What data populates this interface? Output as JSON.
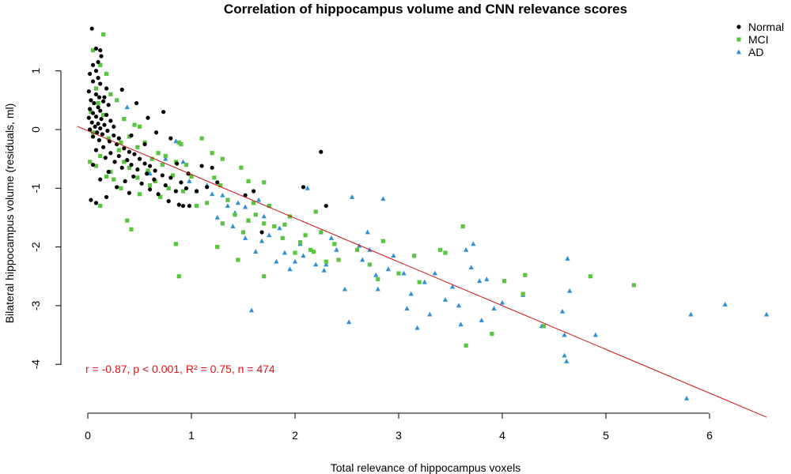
{
  "chart_data": {
    "type": "scatter",
    "title": "Correlation of hippocampus volume and CNN relevance scores",
    "xlabel": "Total relevance of hippocampus voxels",
    "ylabel": "Bilateral hippocampus volume (residuals, ml)",
    "xlim": [
      -0.05,
      6.55
    ],
    "ylim": [
      -4.85,
      1.75
    ],
    "xticks": [
      0,
      1,
      2,
      3,
      4,
      5,
      6
    ],
    "yticks": [
      1,
      0,
      -1,
      -2,
      -3,
      -4
    ],
    "grid": false,
    "legend_position": "top-right",
    "colors": {
      "Normal": "#000000",
      "MCI": "#59c43f",
      "AD": "#2f8fd3",
      "fit": "#d01010",
      "annotation": "#e3141a"
    },
    "annotation": "r = -0.87, p < 0.001, R² = 0.75, n = 474",
    "fit_line": {
      "intercept": -0.02,
      "slope": -0.745
    },
    "series": [
      {
        "name": "Normal",
        "marker": "circle",
        "points": [
          [
            0.04,
            1.72
          ],
          [
            0.08,
            1.38
          ],
          [
            0.12,
            1.35
          ],
          [
            0.13,
            1.25
          ],
          [
            0.1,
            1.15
          ],
          [
            0.05,
            1.1
          ],
          [
            0.08,
            1.0
          ],
          [
            0.02,
            0.95
          ],
          [
            0.1,
            0.88
          ],
          [
            0.05,
            0.82
          ],
          [
            0.12,
            0.78
          ],
          [
            0.18,
            0.7
          ],
          [
            0.01,
            0.65
          ],
          [
            0.08,
            0.6
          ],
          [
            0.11,
            0.55
          ],
          [
            0.03,
            0.5
          ],
          [
            0.15,
            0.48
          ],
          [
            0.06,
            0.45
          ],
          [
            0.2,
            0.42
          ],
          [
            0.1,
            0.38
          ],
          [
            0.02,
            0.35
          ],
          [
            0.12,
            0.32
          ],
          [
            0.05,
            0.28
          ],
          [
            0.18,
            0.25
          ],
          [
            0.08,
            0.22
          ],
          [
            0.01,
            0.2
          ],
          [
            0.13,
            0.18
          ],
          [
            0.22,
            0.15
          ],
          [
            0.04,
            0.12
          ],
          [
            0.1,
            0.1
          ],
          [
            0.16,
            0.08
          ],
          [
            0.07,
            0.05
          ],
          [
            0.12,
            0.02
          ],
          [
            0.02,
            0.0
          ],
          [
            0.19,
            -0.02
          ],
          [
            0.09,
            -0.05
          ],
          [
            0.14,
            -0.08
          ],
          [
            0.25,
            -0.1
          ],
          [
            0.05,
            -0.12
          ],
          [
            0.3,
            -0.15
          ],
          [
            0.11,
            -0.18
          ],
          [
            0.21,
            -0.2
          ],
          [
            0.28,
            -0.25
          ],
          [
            0.15,
            -0.3
          ],
          [
            0.35,
            -0.32
          ],
          [
            0.08,
            -0.35
          ],
          [
            0.4,
            -0.38
          ],
          [
            0.22,
            -0.4
          ],
          [
            0.45,
            -0.42
          ],
          [
            0.3,
            -0.45
          ],
          [
            0.17,
            -0.48
          ],
          [
            0.5,
            -0.5
          ],
          [
            0.38,
            -0.52
          ],
          [
            0.26,
            -0.55
          ],
          [
            0.55,
            -0.58
          ],
          [
            0.42,
            -0.6
          ],
          [
            0.6,
            -0.62
          ],
          [
            0.33,
            -0.65
          ],
          [
            0.48,
            -0.68
          ],
          [
            0.65,
            -0.7
          ],
          [
            0.2,
            -0.72
          ],
          [
            0.57,
            -0.75
          ],
          [
            0.72,
            -0.78
          ],
          [
            0.44,
            -0.8
          ],
          [
            0.8,
            -0.82
          ],
          [
            0.64,
            -0.85
          ],
          [
            0.36,
            -0.88
          ],
          [
            0.9,
            -0.9
          ],
          [
            0.52,
            -0.92
          ],
          [
            0.75,
            -0.95
          ],
          [
            0.28,
            -0.98
          ],
          [
            0.95,
            -1.0
          ],
          [
            0.6,
            -1.02
          ],
          [
            0.85,
            -1.05
          ],
          [
            0.4,
            -1.08
          ],
          [
            0.68,
            -1.1
          ],
          [
            0.18,
            -1.15
          ],
          [
            0.78,
            -1.22
          ],
          [
            0.08,
            -1.25
          ],
          [
            0.92,
            -1.3
          ],
          [
            0.33,
            0.68
          ],
          [
            0.47,
            0.45
          ],
          [
            0.58,
            0.2
          ],
          [
            0.66,
            -0.05
          ],
          [
            0.8,
            -0.15
          ],
          [
            0.73,
            0.3
          ],
          [
            0.55,
            -0.25
          ],
          [
            0.42,
            -0.1
          ],
          [
            0.25,
            0.05
          ],
          [
            0.16,
            0.55
          ],
          [
            0.05,
            -0.6
          ],
          [
            0.12,
            -0.85
          ],
          [
            0.03,
            -1.2
          ],
          [
            1.1,
            -0.62
          ],
          [
            1.2,
            -0.65
          ],
          [
            1.15,
            -0.98
          ],
          [
            1.25,
            -0.9
          ],
          [
            1.52,
            -1.12
          ],
          [
            1.6,
            -1.05
          ],
          [
            1.68,
            -1.75
          ],
          [
            2.08,
            -0.98
          ],
          [
            2.25,
            -0.38
          ],
          [
            2.3,
            -1.3
          ],
          [
            0.98,
            -1.3
          ],
          [
            0.88,
            -1.28
          ],
          [
            1.05,
            -1.05
          ],
          [
            0.97,
            -0.75
          ],
          [
            0.86,
            -0.58
          ]
        ]
      },
      {
        "name": "MCI",
        "marker": "square",
        "points": [
          [
            0.15,
            1.62
          ],
          [
            0.05,
            1.35
          ],
          [
            0.12,
            1.1
          ],
          [
            0.18,
            0.95
          ],
          [
            0.08,
            0.7
          ],
          [
            0.22,
            0.6
          ],
          [
            0.1,
            0.45
          ],
          [
            0.28,
            0.5
          ],
          [
            0.03,
            0.3
          ],
          [
            0.15,
            0.25
          ],
          [
            0.35,
            0.18
          ],
          [
            0.05,
            -0.05
          ],
          [
            0.2,
            -0.15
          ],
          [
            0.4,
            -0.12
          ],
          [
            0.12,
            -0.45
          ],
          [
            0.3,
            -0.35
          ],
          [
            0.48,
            -0.3
          ],
          [
            0.55,
            -0.22
          ],
          [
            0.08,
            -0.62
          ],
          [
            0.22,
            -0.72
          ],
          [
            0.35,
            -0.55
          ],
          [
            0.62,
            -0.5
          ],
          [
            0.75,
            -0.45
          ],
          [
            0.48,
            -0.82
          ],
          [
            0.65,
            -0.88
          ],
          [
            0.85,
            -0.55
          ],
          [
            0.95,
            -0.6
          ],
          [
            0.5,
            -1.1
          ],
          [
            0.7,
            -1.15
          ],
          [
            0.02,
            -0.55
          ],
          [
            0.12,
            -1.3
          ],
          [
            0.38,
            -1.55
          ],
          [
            0.42,
            -1.7
          ],
          [
            0.9,
            -0.25
          ],
          [
            1.1,
            -0.15
          ],
          [
            1.2,
            -0.4
          ],
          [
            1.3,
            -0.5
          ],
          [
            1.22,
            -0.82
          ],
          [
            1.28,
            -0.95
          ],
          [
            1.35,
            -1.2
          ],
          [
            1.48,
            -0.65
          ],
          [
            1.55,
            -0.88
          ],
          [
            1.6,
            -1.25
          ],
          [
            1.42,
            -1.45
          ],
          [
            1.3,
            -1.6
          ],
          [
            1.5,
            -1.75
          ],
          [
            1.62,
            -1.45
          ],
          [
            1.7,
            -1.6
          ],
          [
            1.7,
            -0.9
          ],
          [
            1.75,
            -1.3
          ],
          [
            1.8,
            -1.65
          ],
          [
            1.88,
            -1.85
          ],
          [
            1.95,
            -1.48
          ],
          [
            2.0,
            -2.1
          ],
          [
            2.1,
            -1.8
          ],
          [
            2.15,
            -2.05
          ],
          [
            2.2,
            -1.4
          ],
          [
            2.25,
            -1.75
          ],
          [
            2.3,
            -2.25
          ],
          [
            2.18,
            -2.08
          ],
          [
            2.38,
            -1.95
          ],
          [
            2.42,
            -2.22
          ],
          [
            2.6,
            -2.05
          ],
          [
            2.72,
            -2.3
          ],
          [
            2.8,
            -2.55
          ],
          [
            2.85,
            -1.9
          ],
          [
            3.0,
            -2.45
          ],
          [
            3.15,
            -2.15
          ],
          [
            3.2,
            -2.6
          ],
          [
            3.4,
            -2.05
          ],
          [
            3.45,
            -2.1
          ],
          [
            3.62,
            -1.65
          ],
          [
            3.65,
            -3.68
          ],
          [
            3.9,
            -3.48
          ],
          [
            4.02,
            -2.58
          ],
          [
            4.22,
            -2.48
          ],
          [
            4.2,
            -2.8
          ],
          [
            4.4,
            -3.35
          ],
          [
            4.85,
            -2.5
          ],
          [
            5.27,
            -2.65
          ],
          [
            0.88,
            -2.5
          ],
          [
            0.85,
            -1.95
          ],
          [
            1.25,
            -2.0
          ],
          [
            1.45,
            -2.22
          ],
          [
            1.7,
            -2.5
          ],
          [
            1.05,
            -1.3
          ],
          [
            1.15,
            -1.25
          ],
          [
            1.55,
            -1.55
          ],
          [
            1.9,
            -1.62
          ],
          [
            2.05,
            -1.92
          ],
          [
            1.0,
            -0.8
          ],
          [
            0.6,
            -0.95
          ],
          [
            0.78,
            -1.0
          ],
          [
            0.32,
            -1.0
          ],
          [
            0.25,
            -0.85
          ],
          [
            0.18,
            -0.8
          ],
          [
            0.4,
            -0.65
          ],
          [
            0.58,
            -0.7
          ],
          [
            0.68,
            -0.4
          ],
          [
            0.72,
            -0.6
          ],
          [
            0.82,
            -0.78
          ],
          [
            0.92,
            -1.05
          ],
          [
            0.88,
            -0.22
          ],
          [
            0.45,
            0.08
          ],
          [
            0.5,
            0.05
          ],
          [
            0.32,
            -0.22
          ]
        ]
      },
      {
        "name": "AD",
        "marker": "triangle",
        "points": [
          [
            0.38,
            0.38
          ],
          [
            0.85,
            -0.2
          ],
          [
            0.92,
            -0.55
          ],
          [
            0.98,
            -0.88
          ],
          [
            1.2,
            -1.1
          ],
          [
            1.35,
            -1.3
          ],
          [
            1.42,
            -1.42
          ],
          [
            1.52,
            -1.32
          ],
          [
            1.55,
            -1.55
          ],
          [
            1.58,
            -3.08
          ],
          [
            1.62,
            -2.08
          ],
          [
            1.7,
            -1.48
          ],
          [
            1.75,
            -1.8
          ],
          [
            1.82,
            -2.25
          ],
          [
            1.85,
            -1.68
          ],
          [
            1.9,
            -2.1
          ],
          [
            1.95,
            -2.38
          ],
          [
            2.05,
            -1.95
          ],
          [
            2.08,
            -2.15
          ],
          [
            2.12,
            -1.0
          ],
          [
            2.2,
            -2.3
          ],
          [
            2.25,
            -1.75
          ],
          [
            2.28,
            -2.4
          ],
          [
            2.35,
            -1.85
          ],
          [
            2.4,
            -2.05
          ],
          [
            2.48,
            -2.72
          ],
          [
            2.52,
            -3.28
          ],
          [
            2.55,
            -1.15
          ],
          [
            2.62,
            -1.98
          ],
          [
            2.65,
            -2.22
          ],
          [
            2.7,
            -1.75
          ],
          [
            2.72,
            -2.05
          ],
          [
            2.78,
            -2.48
          ],
          [
            2.8,
            -2.72
          ],
          [
            2.85,
            -1.18
          ],
          [
            2.9,
            -2.38
          ],
          [
            2.95,
            -2.15
          ],
          [
            3.05,
            -2.45
          ],
          [
            3.08,
            -3.05
          ],
          [
            3.12,
            -2.8
          ],
          [
            3.18,
            -3.38
          ],
          [
            3.25,
            -2.6
          ],
          [
            3.3,
            -3.15
          ],
          [
            3.35,
            -2.45
          ],
          [
            3.45,
            -2.9
          ],
          [
            3.52,
            -2.68
          ],
          [
            3.58,
            -3.0
          ],
          [
            3.6,
            -3.32
          ],
          [
            3.65,
            -2.05
          ],
          [
            3.7,
            -2.35
          ],
          [
            3.72,
            -1.95
          ],
          [
            3.78,
            -2.58
          ],
          [
            3.8,
            -3.25
          ],
          [
            3.85,
            -2.55
          ],
          [
            3.92,
            -3.05
          ],
          [
            4.0,
            -2.95
          ],
          [
            4.2,
            -2.82
          ],
          [
            4.38,
            -3.35
          ],
          [
            4.58,
            -3.1
          ],
          [
            4.6,
            -3.5
          ],
          [
            4.62,
            -3.95
          ],
          [
            4.6,
            -3.85
          ],
          [
            4.63,
            -2.2
          ],
          [
            4.65,
            -2.75
          ],
          [
            4.9,
            -3.5
          ],
          [
            5.78,
            -4.58
          ],
          [
            5.82,
            -3.15
          ],
          [
            6.15,
            -2.98
          ],
          [
            6.55,
            -3.15
          ],
          [
            1.05,
            -1.05
          ],
          [
            1.15,
            -0.95
          ],
          [
            1.3,
            -1.12
          ],
          [
            1.45,
            -1.25
          ],
          [
            1.65,
            -1.2
          ],
          [
            1.25,
            -1.5
          ],
          [
            1.4,
            -1.65
          ],
          [
            1.52,
            -1.85
          ],
          [
            1.68,
            -1.9
          ],
          [
            2.0,
            -2.25
          ],
          [
            2.3,
            -2.3
          ],
          [
            0.6,
            -0.75
          ],
          [
            0.75,
            -0.5
          ],
          [
            0.08,
            -0.05
          ]
        ]
      }
    ]
  }
}
